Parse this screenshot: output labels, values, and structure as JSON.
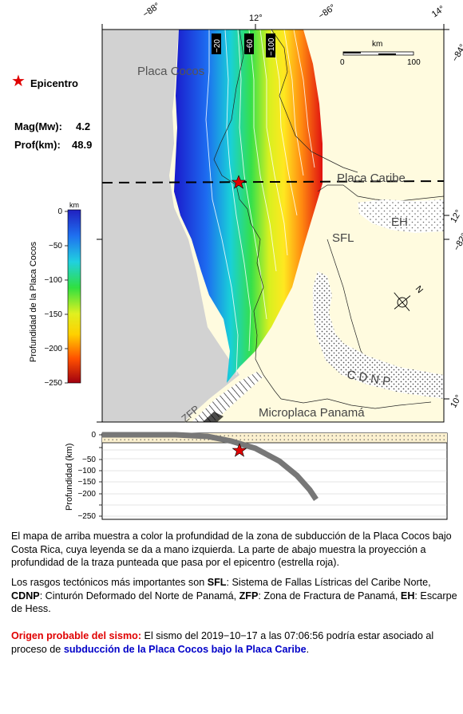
{
  "legend": {
    "epicenter_label": "Epicentro",
    "mag_label": "Mag(Mw):",
    "mag_value": "4.2",
    "depth_label": "Prof(km):",
    "depth_value": "48.9",
    "colorbar_unit": "km",
    "colorbar_title": "Profundidad de la Placa Cocos",
    "colorbar_ticks": [
      "0",
      "−50",
      "−100",
      "−150",
      "−200",
      "−250"
    ],
    "colorbar_range": [
      0,
      -250
    ]
  },
  "map": {
    "top_lon_labels": [
      "−88°",
      "−86°",
      "14°"
    ],
    "top_mid_label": "12°",
    "right_labels": [
      "−84°",
      "12°",
      "−82°",
      "10°"
    ],
    "place_labels": {
      "cocos": "Placa Cocos",
      "caribe": "Placa Caribe",
      "eh": "EH",
      "sfl": "SFL",
      "cdnp": "C D N P",
      "zfp": "ZFP",
      "panama": "Microplaca Panamá"
    },
    "contour_labels": [
      "−20",
      "−60",
      "−100"
    ],
    "scale_unit": "km",
    "scale_ticks": [
      "0",
      "100"
    ],
    "north_label": "N",
    "colors": {
      "land": "#fffbdf",
      "ocean_cocos": "#d0d0d0",
      "epicenter": "#e00000"
    }
  },
  "profile": {
    "ylabel": "Profundidad (km)",
    "ticks": [
      "0",
      "−50",
      "−100",
      "−150",
      "−200",
      "−250"
    ]
  },
  "text": {
    "p1": "El mapa de arriba muestra a color la profundidad de la zona de subducción de la Placa Cocos bajo Costa Rica, cuya leyenda se da a mano izquierda.  La parte de abajo muestra la proyección a profundidad de la traza punteada que pasa por el epicentro (estrella roja).",
    "p2_intro": "Los rasgos tectónicos más importantes son ",
    "p2_sfl": "SFL",
    "p2_sfl_desc": ": Sistema de Fallas Lístricas del Caribe Norte, ",
    "p2_cdnp": "CDNP",
    "p2_cdnp_desc": ": Cinturón Deformado del Norte de Panamá, ",
    "p2_zfp": "ZFP",
    "p2_zfp_desc": ": Zona de Fractura de Panamá, ",
    "p2_eh": "EH",
    "p2_eh_desc": ": Escarpe de Hess.",
    "p3_label": "Origen probable del sismo:",
    "p3_text": " El sismo del 2019−10−17 a las 07:06:56 podría estar asociado al proceso de ",
    "p3_link": "subducción de la Placa Cocos bajo la Placa Caribe",
    "p3_end": "."
  }
}
